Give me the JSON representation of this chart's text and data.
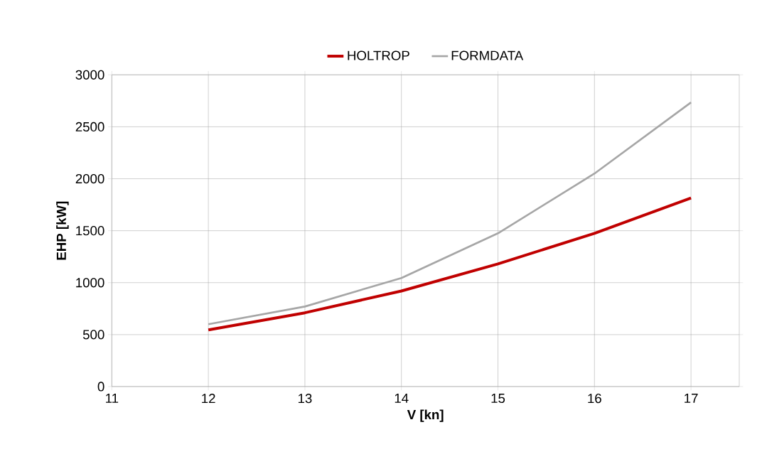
{
  "chart_data": {
    "type": "line",
    "xlabel": "V [kn]",
    "ylabel": "EHP [kW]",
    "x": [
      12,
      13,
      14,
      15,
      16,
      17
    ],
    "series": [
      {
        "name": "HOLTROP",
        "color": "#c00000",
        "values": [
          545,
          710,
          920,
          1180,
          1475,
          1815
        ]
      },
      {
        "name": "FORMDATA",
        "color": "#a6a6a6",
        "values": [
          600,
          770,
          1045,
          1475,
          2050,
          2735
        ]
      }
    ],
    "xlim": [
      11,
      17.5
    ],
    "xticks": [
      11,
      12,
      13,
      14,
      15,
      16,
      17
    ],
    "ylim": [
      0,
      3000
    ],
    "yticks": [
      0,
      500,
      1000,
      1500,
      2000,
      2500,
      3000
    ],
    "grid": true,
    "legend": "top",
    "marker": "none",
    "line_style": "solid"
  }
}
